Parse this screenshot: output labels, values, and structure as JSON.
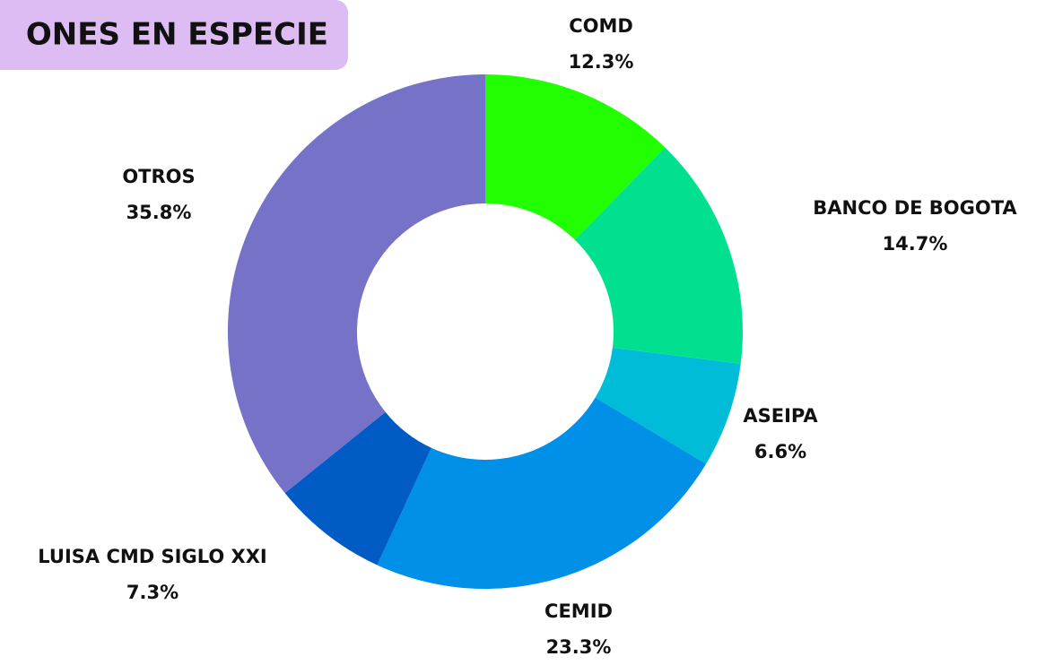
{
  "chart_data": {
    "type": "pie",
    "title": "ONES EN ESPECIE",
    "categories": [
      "COMD",
      "BANCO DE BOGOTA",
      "ASEIPA",
      "CEMID",
      "LUISA CMD SIGLO XXI",
      "OTROS"
    ],
    "values": [
      12.3,
      14.7,
      6.6,
      23.3,
      7.3,
      35.8
    ],
    "value_labels": [
      "12.3%",
      "14.7%",
      "6.6%",
      "23.3%",
      "7.3%",
      "35.8%"
    ],
    "colors": [
      "#22ff00",
      "#00e08f",
      "#00bcd8",
      "#0090e8",
      "#005bc4",
      "#7672c8"
    ]
  }
}
